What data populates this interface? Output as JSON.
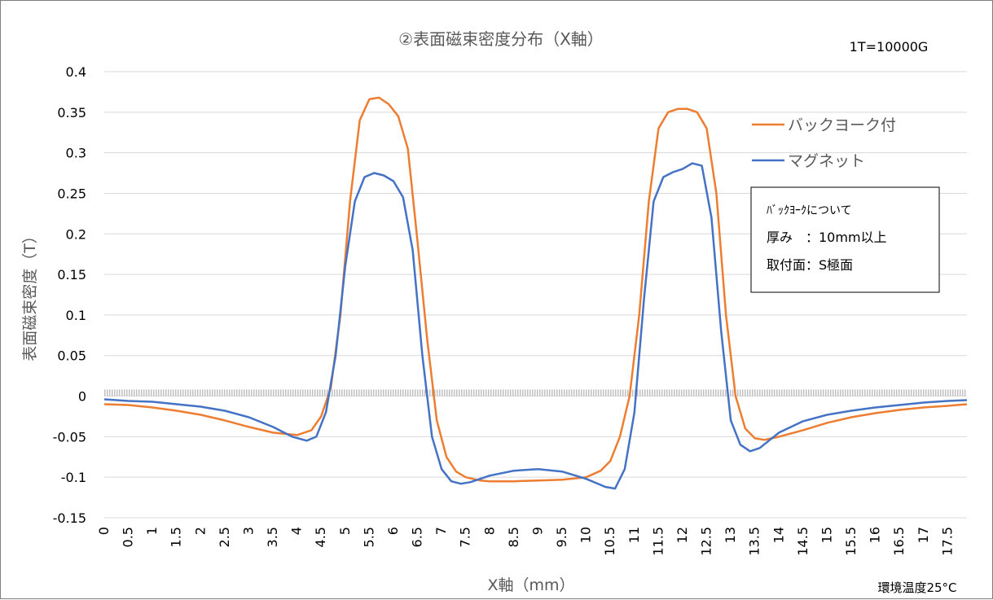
{
  "chart_data": {
    "type": "line",
    "title": "②表面磁束密度分布（X軸）",
    "unit_note": "1T=10000G",
    "temperature_note": "環境温度25°C",
    "xlabel": "X軸（mm）",
    "ylabel": "表面磁束密度（T）",
    "ylim": [
      -0.15,
      0.4
    ],
    "y_ticks": [
      "0.4",
      "0.35",
      "0.3",
      "0.25",
      "0.2",
      "0.15",
      "0.1",
      "0.05",
      "0",
      "-0.05",
      "-0.1",
      "-0.15"
    ],
    "x_ticks": [
      "0",
      "0.5",
      "1",
      "1.5",
      "2",
      "2.5",
      "3",
      "3.5",
      "4",
      "4.5",
      "5",
      "5.5",
      "6",
      "6.5",
      "7",
      "7.5",
      "8",
      "8.5",
      "9",
      "9.5",
      "10",
      "10.5",
      "11",
      "11.5",
      "12",
      "12.5",
      "13",
      "13.5",
      "14",
      "14.5",
      "15",
      "15.5",
      "16",
      "16.5",
      "17",
      "17.5"
    ],
    "grid": true,
    "legend_position": "top-right",
    "series": [
      {
        "name": "バックヨーク付",
        "color": "#ED7D31",
        "x": [
          0,
          0.5,
          1,
          1.5,
          2,
          2.5,
          3,
          3.5,
          4,
          4.3,
          4.5,
          4.7,
          4.9,
          5.1,
          5.3,
          5.5,
          5.7,
          5.9,
          6.1,
          6.3,
          6.5,
          6.7,
          6.9,
          7.1,
          7.3,
          7.5,
          7.8,
          8,
          8.5,
          9,
          9.5,
          10,
          10.3,
          10.5,
          10.7,
          10.9,
          11.1,
          11.3,
          11.5,
          11.7,
          11.9,
          12.1,
          12.3,
          12.5,
          12.7,
          12.9,
          13.1,
          13.3,
          13.5,
          13.7,
          14,
          14.5,
          15,
          15.5,
          16,
          16.5,
          17,
          17.5,
          17.9
        ],
        "y": [
          -0.01,
          -0.011,
          -0.014,
          -0.018,
          -0.023,
          -0.03,
          -0.038,
          -0.045,
          -0.048,
          -0.042,
          -0.025,
          0.01,
          0.1,
          0.24,
          0.34,
          0.366,
          0.368,
          0.36,
          0.345,
          0.305,
          0.19,
          0.07,
          -0.03,
          -0.075,
          -0.093,
          -0.1,
          -0.104,
          -0.105,
          -0.105,
          -0.104,
          -0.103,
          -0.1,
          -0.092,
          -0.08,
          -0.05,
          0.0,
          0.1,
          0.24,
          0.33,
          0.35,
          0.354,
          0.354,
          0.35,
          0.33,
          0.25,
          0.1,
          0.0,
          -0.04,
          -0.052,
          -0.054,
          -0.05,
          -0.042,
          -0.033,
          -0.026,
          -0.021,
          -0.017,
          -0.014,
          -0.012,
          -0.01
        ]
      },
      {
        "name": "マグネット",
        "color": "#4472C4",
        "x": [
          0,
          0.5,
          1,
          1.5,
          2,
          2.5,
          3,
          3.5,
          3.9,
          4.2,
          4.4,
          4.6,
          4.8,
          5,
          5.2,
          5.4,
          5.6,
          5.8,
          6,
          6.2,
          6.4,
          6.6,
          6.8,
          7,
          7.2,
          7.4,
          7.6,
          7.8,
          8,
          8.5,
          9,
          9.5,
          10,
          10.4,
          10.6,
          10.8,
          11,
          11.2,
          11.4,
          11.6,
          11.8,
          12,
          12.2,
          12.4,
          12.6,
          12.8,
          13,
          13.2,
          13.4,
          13.6,
          14,
          14.5,
          15,
          15.5,
          16,
          16.5,
          17,
          17.5,
          17.9
        ],
        "y": [
          -0.004,
          -0.006,
          -0.007,
          -0.01,
          -0.013,
          -0.018,
          -0.026,
          -0.038,
          -0.05,
          -0.055,
          -0.05,
          -0.02,
          0.05,
          0.16,
          0.24,
          0.27,
          0.275,
          0.272,
          0.265,
          0.245,
          0.18,
          0.05,
          -0.05,
          -0.09,
          -0.105,
          -0.108,
          -0.106,
          -0.102,
          -0.098,
          -0.092,
          -0.09,
          -0.093,
          -0.102,
          -0.112,
          -0.114,
          -0.09,
          -0.02,
          0.12,
          0.24,
          0.27,
          0.276,
          0.28,
          0.287,
          0.284,
          0.22,
          0.08,
          -0.03,
          -0.06,
          -0.068,
          -0.064,
          -0.045,
          -0.031,
          -0.023,
          -0.018,
          -0.014,
          -0.011,
          -0.008,
          -0.006,
          -0.005
        ]
      }
    ],
    "annotation_box": [
      "ﾊﾞｯｸﾖｰｸについて",
      "厚み　：10mm以上",
      "取付面：S極面"
    ]
  }
}
